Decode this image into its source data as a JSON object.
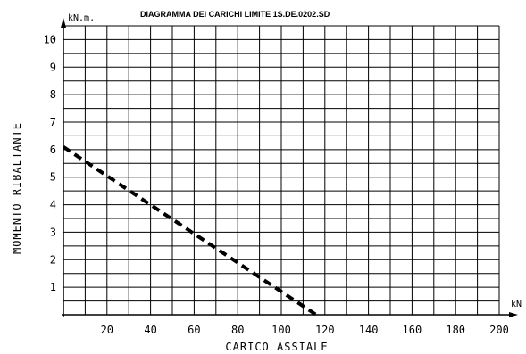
{
  "chart_data": {
    "type": "line",
    "title": "DIAGRAMMA DEI CARICHI LIMITE 1S.DE.0202.SD",
    "xlabel": "CARICO ASSIALE",
    "ylabel": "MOMENTO RIBALTANTE",
    "x_unit": "kN",
    "y_unit": "kN.m.",
    "xlim": [
      0,
      200
    ],
    "ylim": [
      0,
      10.5
    ],
    "x_ticks": [
      20,
      40,
      60,
      80,
      100,
      120,
      140,
      160,
      180,
      200
    ],
    "y_ticks": [
      1,
      2,
      3,
      4,
      5,
      6,
      7,
      8,
      9,
      10
    ],
    "grid": true,
    "legend": "none",
    "series": [
      {
        "style": "dashed",
        "color": "#000000",
        "x": [
          0,
          116
        ],
        "y": [
          6.1,
          0
        ]
      }
    ]
  }
}
